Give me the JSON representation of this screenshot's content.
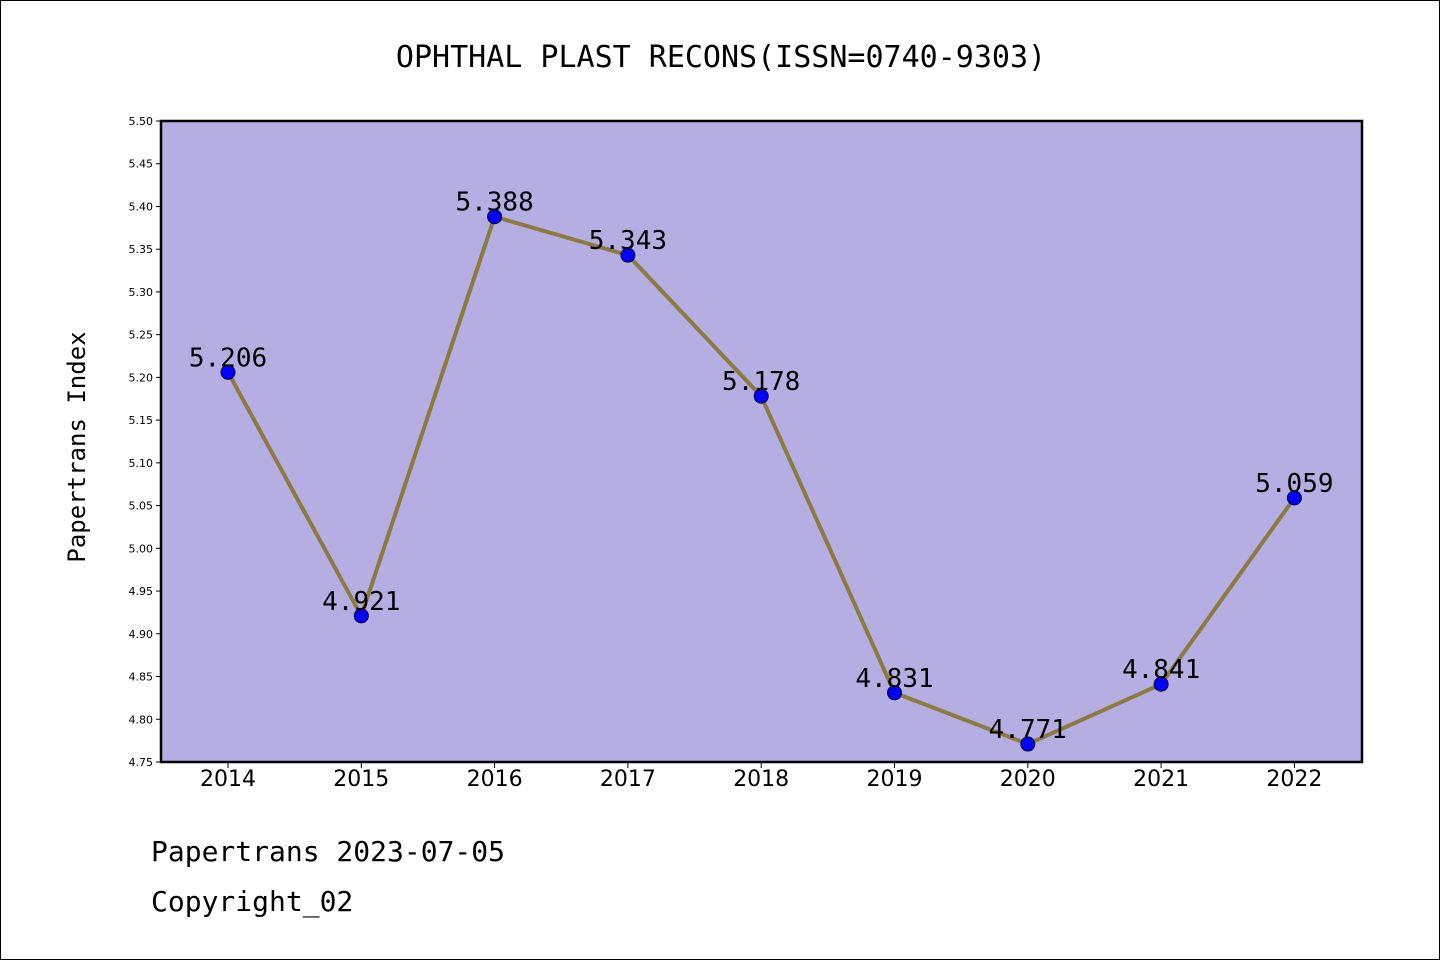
{
  "chart_data": {
    "type": "line",
    "title": "OPHTHAL PLAST RECONS(ISSN=0740-9303)",
    "xlabel": "",
    "ylabel": "Papertrans Index",
    "categories": [
      "2014",
      "2015",
      "2016",
      "2017",
      "2018",
      "2019",
      "2020",
      "2021",
      "2022"
    ],
    "values": [
      5.206,
      4.921,
      5.388,
      5.343,
      5.178,
      4.831,
      4.771,
      4.841,
      5.059
    ],
    "data_labels": [
      "5.206",
      "4.921",
      "5.388",
      "5.343",
      "5.178",
      "4.831",
      "4.771",
      "4.841",
      "5.059"
    ],
    "ylim": [
      4.75,
      5.5
    ],
    "yticks": [
      "4.75",
      "4.80",
      "4.85",
      "4.90",
      "4.95",
      "5.00",
      "5.05",
      "5.10",
      "5.15",
      "5.20",
      "5.25",
      "5.30",
      "5.35",
      "5.40",
      "5.45",
      "5.50"
    ],
    "grid": false,
    "legend": "none",
    "colors": {
      "plot_background": "#b5aee2",
      "line": "#8c7a3e",
      "marker": "#0000ff"
    }
  },
  "footer": {
    "date_line": "Papertrans 2023-07-05",
    "copyright_line": "Copyright_02"
  }
}
